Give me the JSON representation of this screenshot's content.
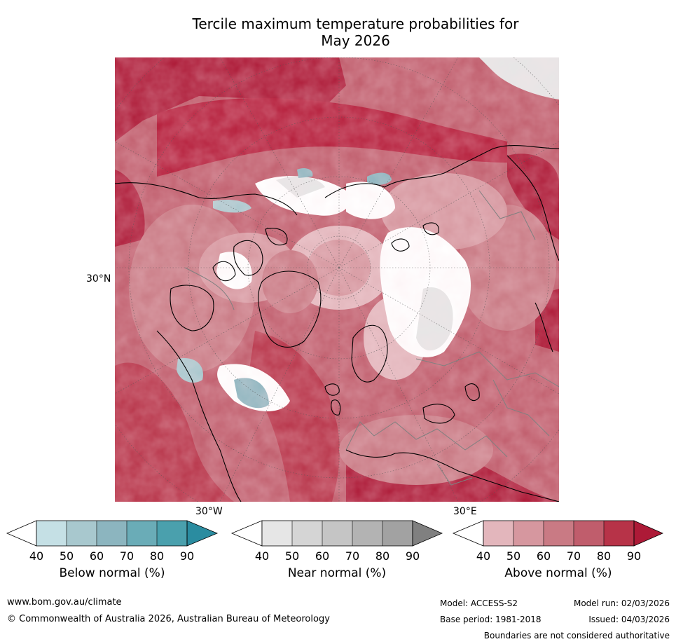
{
  "title": {
    "line1": "Tercile maximum temperature probabilities for",
    "line2": "May 2026"
  },
  "map": {
    "labels": {
      "lat": "30°N",
      "lon_left": "30°W",
      "lon_right": "30°E"
    },
    "palette": {
      "above": [
        "#e3b6bc",
        "#d6979f",
        "#c97a84",
        "#c05d6c",
        "#b73348",
        "#ad1a37"
      ],
      "below": [
        "#c5e0e5",
        "#a8c8ce",
        "#8cb5bf",
        "#6aacb7",
        "#4aa0ad",
        "#2a8ca0"
      ],
      "near": [
        "#e6e6e6",
        "#d5d5d5",
        "#c5c5c5",
        "#b3b3b3",
        "#a2a2a2",
        "#808080"
      ],
      "ocean_above": "#b51d3a",
      "land_outline": "#000000",
      "boundaries": "#808080",
      "grid": "#555555"
    }
  },
  "colorbars": [
    {
      "id": "below",
      "title": "Below normal (%)",
      "ticks": [
        "40",
        "50",
        "60",
        "70",
        "80",
        "90"
      ]
    },
    {
      "id": "near",
      "title": "Near normal (%)",
      "ticks": [
        "40",
        "50",
        "60",
        "70",
        "80",
        "90"
      ]
    },
    {
      "id": "above",
      "title": "Above normal (%)",
      "ticks": [
        "40",
        "50",
        "60",
        "70",
        "80",
        "90"
      ]
    }
  ],
  "footer": {
    "url": "www.bom.gov.au/climate",
    "copyright": "© Commonwealth of Australia 2026, Australian Bureau of Meteorology",
    "model": "Model: ACCESS-S2",
    "base_period": "Base period: 1981-2018",
    "model_run": "Model run: 02/03/2026",
    "issued": "Issued: 04/03/2026",
    "disclaimer": "Boundaries are not considered authoritative"
  }
}
